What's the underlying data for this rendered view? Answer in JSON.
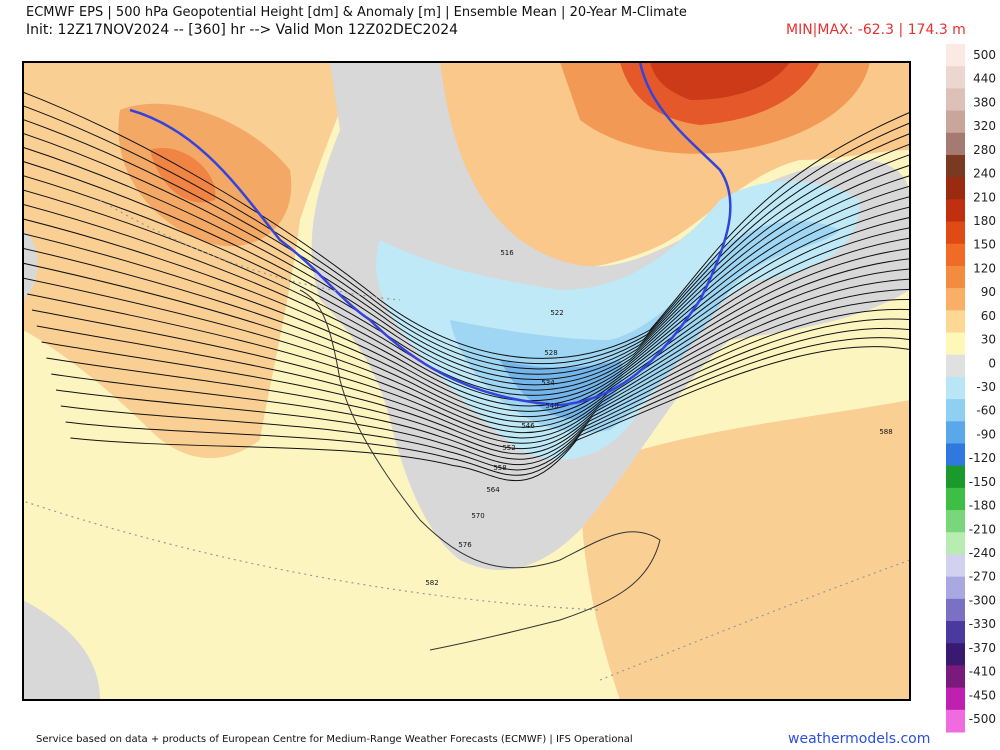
{
  "header": {
    "title": "ECMWF EPS | 500 hPa Geopotential Height [dm] & Anomaly [m] | Ensemble Mean | 20-Year M-Climate",
    "init": "Init: 12Z17NOV2024 -- [360] hr --> Valid Mon 12Z02DEC2024",
    "minmax": "MIN|MAX: -62.3 | 174.3 m"
  },
  "colorbar": {
    "labels": [
      500,
      440,
      380,
      320,
      280,
      240,
      210,
      180,
      150,
      120,
      90,
      60,
      30,
      0,
      -30,
      -60,
      -90,
      -120,
      -150,
      -180,
      -210,
      -240,
      -270,
      -300,
      -330,
      -370,
      -410,
      -450,
      -500
    ],
    "colors": [
      "#fbe9e4",
      "#ecd6d0",
      "#ddc1b9",
      "#c9a69c",
      "#a57a70",
      "#7a3a22",
      "#9a2a10",
      "#c0300e",
      "#e04a14",
      "#ef6b26",
      "#f48c40",
      "#f9b066",
      "#fcd894",
      "#fdf7b8",
      "#e0e0e0",
      "#b9e6f6",
      "#8fd0f2",
      "#5aa8ea",
      "#2f78e0",
      "#1a9a2a",
      "#3cbf44",
      "#7ad67a",
      "#b9ecb0",
      "#d2d2f0",
      "#aaa8e0",
      "#7a70c4",
      "#4a3aa0",
      "#3a1a70",
      "#7a1a7a",
      "#c020b0",
      "#f06ae0"
    ]
  },
  "map": {
    "contour_labels": [
      "516",
      "522",
      "528",
      "534",
      "540",
      "546",
      "552",
      "558",
      "564",
      "570",
      "576",
      "582",
      "588"
    ]
  },
  "footer": {
    "source": "Service based on data + products of European Centre for Medium-Range Weather Forecasts (ECMWF) | IFS Operational",
    "site": "weathermodels.com"
  }
}
